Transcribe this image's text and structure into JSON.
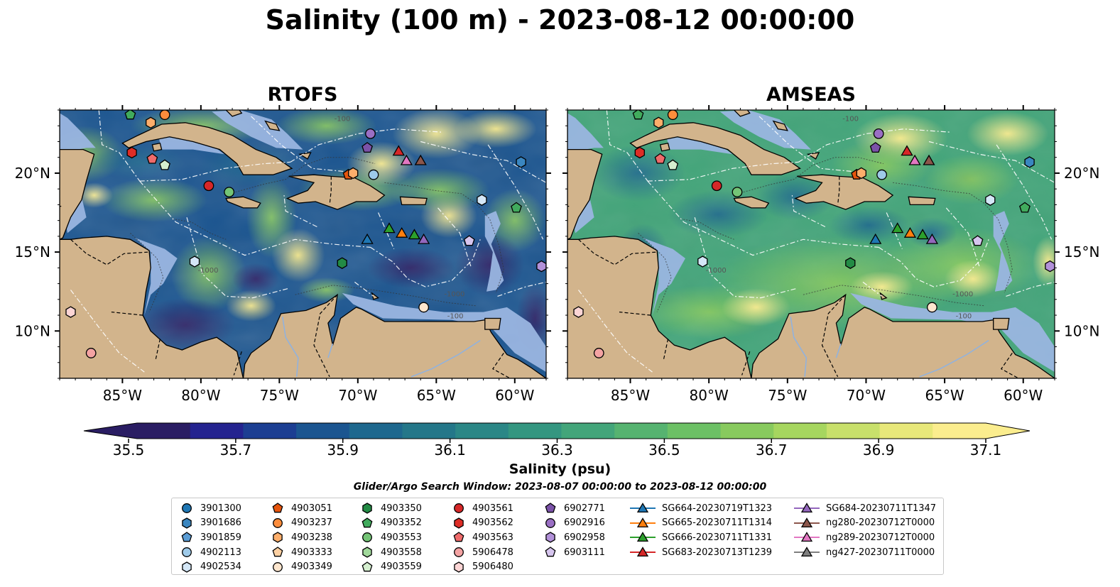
{
  "title": "Salinity (100 m) - 2023-08-12 00:00:00",
  "panels": [
    {
      "title": "RTOFS",
      "model": "rtofs"
    },
    {
      "title": "AMSEAS",
      "model": "amseas"
    }
  ],
  "map": {
    "lon_range": [
      -89,
      -58
    ],
    "lat_range": [
      7,
      24
    ],
    "lon_ticks": [
      "85°W",
      "80°W",
      "75°W",
      "70°W",
      "65°W",
      "60°W"
    ],
    "lat_ticks": [
      "20°N",
      "15°N",
      "10°N"
    ],
    "contour_labels": [
      "-1000",
      "-100"
    ],
    "colors": {
      "land": "#d2b48c",
      "shallow_water": "#9ab5e0",
      "coastline": "#000000",
      "borders": "#000000",
      "rivers": "#8fb2e0",
      "eez_lines": "#ffffff"
    }
  },
  "colorbar": {
    "label": "Salinity (psu)",
    "min": 35.5,
    "max": 37.1,
    "step": 0.1,
    "ticks": [
      "35.5",
      "35.7",
      "35.9",
      "36.1",
      "36.3",
      "36.5",
      "36.7",
      "36.9",
      "37.1"
    ],
    "colormap": "haline",
    "colors": [
      "#2a1d63",
      "#24238f",
      "#1c3e92",
      "#1b5590",
      "#1e688e",
      "#247789",
      "#2b8786",
      "#349680",
      "#43a57a",
      "#56b370",
      "#6cc065",
      "#88ca5e",
      "#a6d65f",
      "#c8e06b",
      "#e8e87a",
      "#fbed8e"
    ]
  },
  "search_window": "Glider/Argo Search Window: 2023-08-07 00:00:00 to 2023-08-12 00:00:00",
  "legend": [
    {
      "label": "3901300",
      "marker": "circle",
      "color": "#1f77b4"
    },
    {
      "label": "3901686",
      "marker": "hexagon",
      "color": "#3a86c0"
    },
    {
      "label": "3901859",
      "marker": "pentagon",
      "color": "#5a9cd4"
    },
    {
      "label": "4902113",
      "marker": "circle",
      "color": "#9ecae9"
    },
    {
      "label": "4902534",
      "marker": "hexagon",
      "color": "#d4e7f7"
    },
    {
      "label": "4903051",
      "marker": "pentagon",
      "color": "#e6550d"
    },
    {
      "label": "4903237",
      "marker": "circle",
      "color": "#fd8d3c"
    },
    {
      "label": "4903238",
      "marker": "hexagon",
      "color": "#fdae6b"
    },
    {
      "label": "4903333",
      "marker": "pentagon",
      "color": "#fdd0a2"
    },
    {
      "label": "4903349",
      "marker": "circle",
      "color": "#fee6ce"
    },
    {
      "label": "4903350",
      "marker": "hexagon",
      "color": "#238b45"
    },
    {
      "label": "4903352",
      "marker": "pentagon",
      "color": "#41ab5d"
    },
    {
      "label": "4903553",
      "marker": "circle",
      "color": "#74c476"
    },
    {
      "label": "4903558",
      "marker": "hexagon",
      "color": "#a1d99b"
    },
    {
      "label": "4903559",
      "marker": "pentagon",
      "color": "#d5efcf"
    },
    {
      "label": "4903561",
      "marker": "circle",
      "color": "#d62728"
    },
    {
      "label": "4903562",
      "marker": "hexagon",
      "color": "#de2d26"
    },
    {
      "label": "4903563",
      "marker": "pentagon",
      "color": "#ef6b6b"
    },
    {
      "label": "5906478",
      "marker": "circle",
      "color": "#f4a3a3"
    },
    {
      "label": "5906480",
      "marker": "hexagon",
      "color": "#fcd5d5"
    },
    {
      "label": "6902771",
      "marker": "pentagon",
      "color": "#7b52a8"
    },
    {
      "label": "6902916",
      "marker": "circle",
      "color": "#9a6fc4"
    },
    {
      "label": "6902958",
      "marker": "hexagon",
      "color": "#b291d9"
    },
    {
      "label": "6903111",
      "marker": "pentagon",
      "color": "#d6c5ee"
    },
    {
      "label": "SG664-20230719T1323",
      "marker": "triangle",
      "color": "#1f77b4",
      "line": true
    },
    {
      "label": "SG665-20230711T1314",
      "marker": "triangle",
      "color": "#ff7f0e",
      "line": true
    },
    {
      "label": "SG666-20230711T1331",
      "marker": "triangle",
      "color": "#2ca02c",
      "line": true
    },
    {
      "label": "SG683-20230713T1239",
      "marker": "triangle",
      "color": "#d62728",
      "line": true
    },
    {
      "label": "SG684-20230711T1347",
      "marker": "triangle",
      "color": "#9467bd",
      "line": true
    },
    {
      "label": "ng280-20230712T0000",
      "marker": "triangle",
      "color": "#8c564b",
      "line": true
    },
    {
      "label": "ng289-20230712T0000",
      "marker": "triangle",
      "color": "#e377c2",
      "line": true
    },
    {
      "label": "ng427-20230711T0000",
      "marker": "triangle",
      "color": "#7f7f7f",
      "line": true
    }
  ],
  "platforms": [
    {
      "id": "4903352",
      "lon": -84.5,
      "lat": 23.7
    },
    {
      "id": "4903238",
      "lon": -83.2,
      "lat": 23.2
    },
    {
      "id": "4903237",
      "lon": -82.3,
      "lat": 23.7
    },
    {
      "id": "4903562",
      "lon": -84.4,
      "lat": 21.3
    },
    {
      "id": "4903563",
      "lon": -83.1,
      "lat": 20.9
    },
    {
      "id": "4903559",
      "lon": -82.3,
      "lat": 20.5
    },
    {
      "id": "4903561",
      "lon": -79.5,
      "lat": 19.2
    },
    {
      "id": "4903553",
      "lon": -78.2,
      "lat": 18.8
    },
    {
      "id": "6902916",
      "lon": -69.2,
      "lat": 22.5
    },
    {
      "id": "6902771",
      "lon": -69.4,
      "lat": 21.6
    },
    {
      "id": "4903051",
      "lon": -70.6,
      "lat": 19.9
    },
    {
      "id": "4903238",
      "lon": -70.3,
      "lat": 20.0
    },
    {
      "id": "4902113",
      "lon": -69.0,
      "lat": 19.9
    },
    {
      "id": "3901686",
      "lon": -59.6,
      "lat": 20.7
    },
    {
      "id": "4902534",
      "lon": -62.1,
      "lat": 18.3
    },
    {
      "id": "4903352",
      "lon": -59.9,
      "lat": 17.8
    },
    {
      "id": "4903350",
      "lon": -71.0,
      "lat": 14.3
    },
    {
      "id": "6903111",
      "lon": -62.9,
      "lat": 15.7
    },
    {
      "id": "6902958",
      "lon": -58.3,
      "lat": 14.1
    },
    {
      "id": "4902534",
      "lon": -80.4,
      "lat": 14.4
    },
    {
      "id": "5906480",
      "lon": -88.3,
      "lat": 11.2
    },
    {
      "id": "4903349",
      "lon": -65.8,
      "lat": 11.5
    },
    {
      "id": "5906478",
      "lon": -87.0,
      "lat": 8.6
    },
    {
      "id": "SG683-20230713T1239",
      "lon": -67.4,
      "lat": 21.4
    },
    {
      "id": "ng289-20230712T0000",
      "lon": -66.9,
      "lat": 20.8
    },
    {
      "id": "ng280-20230712T0000",
      "lon": -66.0,
      "lat": 20.8
    },
    {
      "id": "SG666-20230711T1331",
      "lon": -68.0,
      "lat": 16.5
    },
    {
      "id": "SG665-20230711T1314",
      "lon": -67.2,
      "lat": 16.2
    },
    {
      "id": "SG666-20230711T1331",
      "lon": -66.4,
      "lat": 16.1
    },
    {
      "id": "SG684-20230711T1347",
      "lon": -65.8,
      "lat": 15.8
    },
    {
      "id": "SG664-20230719T1323",
      "lon": -69.4,
      "lat": 15.8
    }
  ]
}
